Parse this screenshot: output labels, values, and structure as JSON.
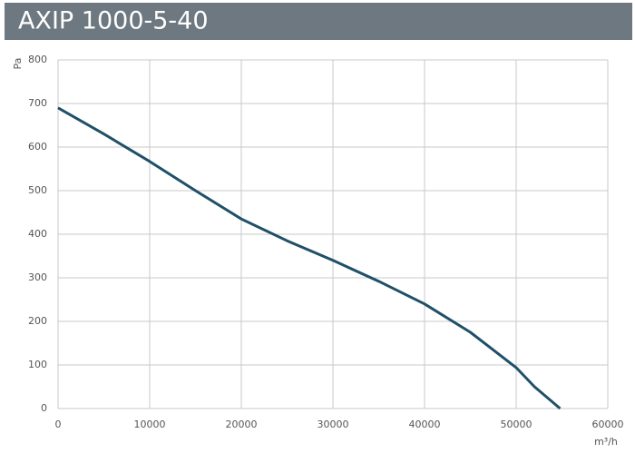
{
  "chart_data": {
    "type": "line",
    "title": "AXIP 1000-5-40",
    "x_label": "m³/h",
    "y_label": "Pa",
    "x": [
      0,
      5000,
      10000,
      15000,
      20000,
      25000,
      30000,
      35000,
      40000,
      45000,
      50000,
      52000,
      54800
    ],
    "series": [
      {
        "name": "AXIP 1000-5-40",
        "color": "#1f5068",
        "values": [
          690,
          630,
          567,
          500,
          435,
          385,
          340,
          292,
          240,
          175,
          94,
          50,
          0
        ]
      }
    ],
    "xlim": [
      0,
      60000
    ],
    "xticks": [
      0,
      10000,
      20000,
      30000,
      40000,
      50000,
      60000
    ],
    "ylim": [
      0,
      800
    ],
    "yticks": [
      0,
      100,
      200,
      300,
      400,
      500,
      600,
      700,
      800
    ],
    "grid": true
  }
}
